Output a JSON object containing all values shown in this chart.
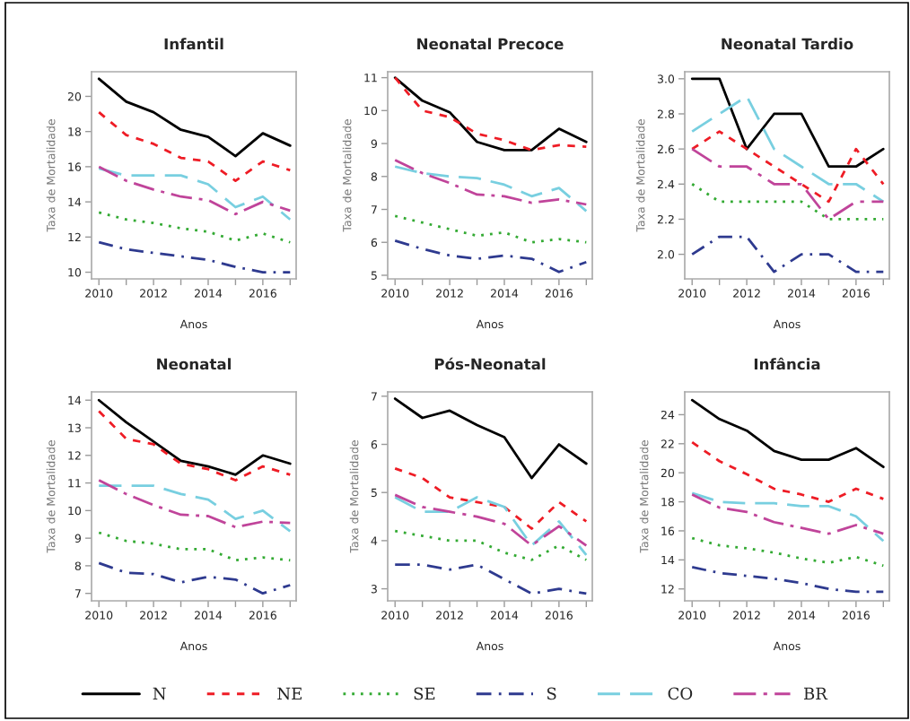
{
  "chart_data": [
    {
      "type": "line",
      "title": "Infantil",
      "xlabel": "Anos",
      "ylabel": "Taxa de Mortalidade",
      "legend": "bottom",
      "grid": false,
      "x": [
        2010,
        2011,
        2012,
        2013,
        2014,
        2015,
        2016,
        2017
      ],
      "xlim": [
        2009.73,
        2017.22
      ],
      "xticks": [
        2010,
        {
          "value": 2011,
          "label": null
        },
        2012,
        {
          "value": 2013,
          "label": null
        },
        2014,
        {
          "value": 2015,
          "label": null
        },
        2016,
        {
          "value": 2017,
          "label": null
        }
      ],
      "ylim": [
        9.62,
        21.4
      ],
      "yticks": [
        10,
        12,
        14,
        16,
        18,
        20
      ],
      "series": [
        {
          "name": "N",
          "color": "#000000",
          "line_style": "solid",
          "values": [
            21.0,
            19.7,
            19.1,
            18.1,
            17.7,
            16.6,
            17.9,
            17.2
          ]
        },
        {
          "name": "NE",
          "color": "#ee1c25",
          "line_style": "dashed",
          "values": [
            19.1,
            17.8,
            17.3,
            16.5,
            16.3,
            15.2,
            16.3,
            15.8
          ]
        },
        {
          "name": "SE",
          "color": "#33aa33",
          "line_style": "dotted",
          "values": [
            13.4,
            13.0,
            12.8,
            12.5,
            12.3,
            11.8,
            12.2,
            11.7
          ]
        },
        {
          "name": "S",
          "color": "#2e3a8f",
          "line_style": "dashdot",
          "values": [
            11.7,
            11.3,
            11.1,
            10.9,
            10.7,
            10.3,
            10.0,
            10.0
          ]
        },
        {
          "name": "CO",
          "color": "#78cfe0",
          "line_style": "longdash",
          "values": [
            15.9,
            15.5,
            15.5,
            15.5,
            15.0,
            13.7,
            14.3,
            13.0
          ]
        },
        {
          "name": "BR",
          "color": "#c0449a",
          "line_style": "longdashdot",
          "values": [
            16.0,
            15.2,
            14.7,
            14.3,
            14.1,
            13.3,
            14.0,
            13.5
          ]
        }
      ]
    },
    {
      "type": "line",
      "title": "Neonatal Precoce",
      "xlabel": "Anos",
      "ylabel": "Taxa de Mortalidade",
      "grid": false,
      "x": [
        2010,
        2011,
        2012,
        2013,
        2014,
        2015,
        2016,
        2017
      ],
      "xlim": [
        2009.73,
        2017.22
      ],
      "xticks": [
        2010,
        {
          "value": 2011,
          "label": null
        },
        2012,
        {
          "value": 2013,
          "label": null
        },
        2014,
        {
          "value": 2015,
          "label": null
        },
        2016,
        {
          "value": 2017,
          "label": null
        }
      ],
      "ylim": [
        4.89,
        11.18
      ],
      "yticks": [
        5,
        6,
        7,
        8,
        9,
        10,
        11
      ],
      "series": [
        {
          "name": "N",
          "color": "#000000",
          "line_style": "solid",
          "values": [
            11.0,
            10.3,
            9.95,
            9.05,
            8.8,
            8.8,
            9.45,
            9.05
          ]
        },
        {
          "name": "NE",
          "color": "#ee1c25",
          "line_style": "dashed",
          "values": [
            11.0,
            10.0,
            9.8,
            9.3,
            9.1,
            8.8,
            8.95,
            8.9
          ]
        },
        {
          "name": "SE",
          "color": "#33aa33",
          "line_style": "dotted",
          "values": [
            6.8,
            6.6,
            6.4,
            6.2,
            6.3,
            6.0,
            6.1,
            6.0
          ]
        },
        {
          "name": "S",
          "color": "#2e3a8f",
          "line_style": "dashdot",
          "values": [
            6.05,
            5.8,
            5.6,
            5.5,
            5.6,
            5.5,
            5.1,
            5.4
          ]
        },
        {
          "name": "CO",
          "color": "#78cfe0",
          "line_style": "longdash",
          "values": [
            8.3,
            8.1,
            8.0,
            7.95,
            7.75,
            7.4,
            7.65,
            6.95
          ]
        },
        {
          "name": "BR",
          "color": "#c0449a",
          "line_style": "longdashdot",
          "values": [
            8.5,
            8.1,
            7.8,
            7.45,
            7.4,
            7.2,
            7.3,
            7.15
          ]
        }
      ]
    },
    {
      "type": "line",
      "title": "Neonatal Tardio",
      "xlabel": "Anos",
      "ylabel": "Taxa de Mortalidade",
      "grid": false,
      "x": [
        2010,
        2011,
        2012,
        2013,
        2014,
        2015,
        2016,
        2017
      ],
      "xlim": [
        2009.73,
        2017.22
      ],
      "xticks": [
        2010,
        {
          "value": 2011,
          "label": null
        },
        2012,
        {
          "value": 2013,
          "label": null
        },
        2014,
        {
          "value": 2015,
          "label": null
        },
        2016,
        {
          "value": 2017,
          "label": null
        }
      ],
      "ylim": [
        1.86,
        3.04
      ],
      "yticks": [
        {
          "value": 2.0,
          "label": "2.0"
        },
        {
          "value": 2.2,
          "label": "2.2"
        },
        {
          "value": 2.4,
          "label": "2.4"
        },
        {
          "value": 2.6,
          "label": "2.6"
        },
        {
          "value": 2.8,
          "label": "2.8"
        },
        {
          "value": 3.0,
          "label": "3.0"
        }
      ],
      "series": [
        {
          "name": "N",
          "color": "#000000",
          "line_style": "solid",
          "values": [
            3.0,
            3.0,
            2.6,
            2.8,
            2.8,
            2.5,
            2.5,
            2.6
          ]
        },
        {
          "name": "NE",
          "color": "#ee1c25",
          "line_style": "dashed",
          "values": [
            2.6,
            2.7,
            2.6,
            2.5,
            2.4,
            2.3,
            2.6,
            2.4
          ]
        },
        {
          "name": "SE",
          "color": "#33aa33",
          "line_style": "dotted",
          "values": [
            2.4,
            2.3,
            2.3,
            2.3,
            2.3,
            2.2,
            2.2,
            2.2
          ]
        },
        {
          "name": "S",
          "color": "#2e3a8f",
          "line_style": "dashdot",
          "values": [
            2.0,
            2.1,
            2.1,
            1.9,
            2.0,
            2.0,
            1.9,
            1.9
          ]
        },
        {
          "name": "CO",
          "color": "#78cfe0",
          "line_style": "longdash",
          "values": [
            2.7,
            2.8,
            2.9,
            2.6,
            2.5,
            2.4,
            2.4,
            2.3
          ]
        },
        {
          "name": "BR",
          "color": "#c0449a",
          "line_style": "longdashdot",
          "values": [
            2.6,
            2.5,
            2.5,
            2.4,
            2.4,
            2.2,
            2.3,
            2.3
          ]
        }
      ]
    },
    {
      "type": "line",
      "title": "Neonatal",
      "xlabel": "Anos",
      "ylabel": "Taxa de Mortalidade",
      "grid": false,
      "x": [
        2010,
        2011,
        2012,
        2013,
        2014,
        2015,
        2016,
        2017
      ],
      "xlim": [
        2009.73,
        2017.22
      ],
      "xticks": [
        2010,
        {
          "value": 2011,
          "label": null
        },
        2012,
        {
          "value": 2013,
          "label": null
        },
        2014,
        {
          "value": 2015,
          "label": null
        },
        2016,
        {
          "value": 2017,
          "label": null
        }
      ],
      "ylim": [
        6.73,
        14.3
      ],
      "yticks": [
        7,
        8,
        9,
        10,
        11,
        12,
        13,
        14
      ],
      "series": [
        {
          "name": "N",
          "color": "#000000",
          "line_style": "solid",
          "values": [
            14.0,
            13.2,
            12.5,
            11.8,
            11.6,
            11.3,
            12.0,
            11.7
          ]
        },
        {
          "name": "NE",
          "color": "#ee1c25",
          "line_style": "dashed",
          "values": [
            13.6,
            12.6,
            12.4,
            11.7,
            11.5,
            11.1,
            11.6,
            11.3
          ]
        },
        {
          "name": "SE",
          "color": "#33aa33",
          "line_style": "dotted",
          "values": [
            9.2,
            8.9,
            8.8,
            8.6,
            8.6,
            8.2,
            8.3,
            8.2
          ]
        },
        {
          "name": "S",
          "color": "#2e3a8f",
          "line_style": "dashdot",
          "values": [
            8.1,
            7.75,
            7.7,
            7.4,
            7.6,
            7.5,
            7.0,
            7.3
          ]
        },
        {
          "name": "CO",
          "color": "#78cfe0",
          "line_style": "longdash",
          "values": [
            10.9,
            10.9,
            10.9,
            10.6,
            10.4,
            9.7,
            10.0,
            9.25
          ]
        },
        {
          "name": "BR",
          "color": "#c0449a",
          "line_style": "longdashdot",
          "values": [
            11.1,
            10.6,
            10.2,
            9.85,
            9.8,
            9.4,
            9.6,
            9.55
          ]
        }
      ]
    },
    {
      "type": "line",
      "title": "Pós-Neonatal",
      "xlabel": "Anos",
      "ylabel": "Taxa de Mortalidade",
      "grid": false,
      "x": [
        2010,
        2011,
        2012,
        2013,
        2014,
        2015,
        2016,
        2017
      ],
      "xlim": [
        2009.73,
        2017.22
      ],
      "xticks": [
        2010,
        {
          "value": 2011,
          "label": null
        },
        2012,
        {
          "value": 2013,
          "label": null
        },
        2014,
        {
          "value": 2015,
          "label": null
        },
        2016,
        {
          "value": 2017,
          "label": null
        }
      ],
      "ylim": [
        2.75,
        7.09
      ],
      "yticks": [
        3,
        4,
        5,
        6,
        7
      ],
      "series": [
        {
          "name": "N",
          "color": "#000000",
          "line_style": "solid",
          "values": [
            6.95,
            6.55,
            6.7,
            6.4,
            6.15,
            5.3,
            6.0,
            5.6
          ]
        },
        {
          "name": "NE",
          "color": "#ee1c25",
          "line_style": "dashed",
          "values": [
            5.5,
            5.3,
            4.9,
            4.8,
            4.7,
            4.25,
            4.8,
            4.4
          ]
        },
        {
          "name": "SE",
          "color": "#33aa33",
          "line_style": "dotted",
          "values": [
            4.2,
            4.1,
            4.0,
            4.0,
            3.75,
            3.6,
            3.9,
            3.6
          ]
        },
        {
          "name": "S",
          "color": "#2e3a8f",
          "line_style": "dashdot",
          "values": [
            3.5,
            3.5,
            3.4,
            3.5,
            3.2,
            2.9,
            3.0,
            2.9
          ]
        },
        {
          "name": "CO",
          "color": "#78cfe0",
          "line_style": "longdash",
          "values": [
            4.9,
            4.6,
            4.6,
            4.9,
            4.7,
            3.9,
            4.4,
            3.7
          ]
        },
        {
          "name": "BR",
          "color": "#c0449a",
          "line_style": "longdashdot",
          "values": [
            4.95,
            4.7,
            4.6,
            4.5,
            4.35,
            3.9,
            4.3,
            3.9
          ]
        }
      ]
    },
    {
      "type": "line",
      "title": "Infância",
      "xlabel": "Anos",
      "ylabel": "Taxa de Mortalidade",
      "grid": false,
      "x": [
        2010,
        2011,
        2012,
        2013,
        2014,
        2015,
        2016,
        2017
      ],
      "xlim": [
        2009.73,
        2017.22
      ],
      "xticks": [
        2010,
        {
          "value": 2011,
          "label": null
        },
        2012,
        {
          "value": 2013,
          "label": null
        },
        2014,
        {
          "value": 2015,
          "label": null
        },
        2016,
        {
          "value": 2017,
          "label": null
        }
      ],
      "ylim": [
        11.18,
        25.57
      ],
      "yticks": [
        12,
        14,
        16,
        18,
        20,
        22,
        24
      ],
      "series": [
        {
          "name": "N",
          "color": "#000000",
          "line_style": "solid",
          "values": [
            25.0,
            23.7,
            22.9,
            21.5,
            20.9,
            20.9,
            21.7,
            20.4
          ]
        },
        {
          "name": "NE",
          "color": "#ee1c25",
          "line_style": "dashed",
          "values": [
            22.1,
            20.8,
            19.9,
            18.9,
            18.5,
            18.0,
            18.9,
            18.2
          ]
        },
        {
          "name": "SE",
          "color": "#33aa33",
          "line_style": "dotted",
          "values": [
            15.5,
            15.0,
            14.8,
            14.5,
            14.1,
            13.8,
            14.2,
            13.6
          ]
        },
        {
          "name": "S",
          "color": "#2e3a8f",
          "line_style": "dashdot",
          "values": [
            13.5,
            13.1,
            12.9,
            12.7,
            12.4,
            12.0,
            11.8,
            11.8
          ]
        },
        {
          "name": "CO",
          "color": "#78cfe0",
          "line_style": "longdash",
          "values": [
            18.6,
            18.0,
            17.9,
            17.9,
            17.7,
            17.7,
            17.0,
            15.3
          ]
        },
        {
          "name": "BR",
          "color": "#c0449a",
          "line_style": "longdashdot",
          "values": [
            18.5,
            17.6,
            17.3,
            16.6,
            16.2,
            15.8,
            16.4,
            15.8
          ]
        }
      ]
    }
  ]
}
